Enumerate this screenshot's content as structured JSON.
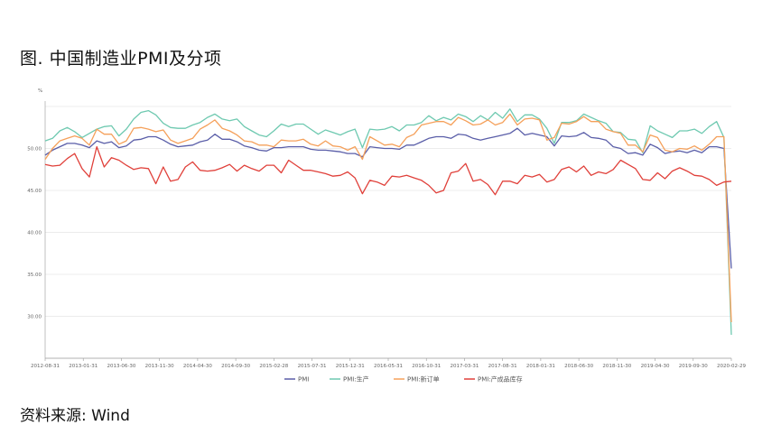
{
  "figure_title": "图. 中国制造业PMI及分项",
  "source": "资料来源: Wind",
  "colors": {
    "PMI": "#5a5ea8",
    "PMI:生产": "#6ec9b0",
    "PMI:新订单": "#f5a05a",
    "PMI:产成品库存": "#e0403a",
    "grid": "#e6e6e6",
    "axis": "#999999"
  },
  "chart_data": {
    "type": "line",
    "ylabel": "%",
    "ylim": [
      25,
      55
    ],
    "yticks": [
      "50.00",
      "45.00",
      "40.00",
      "35.00",
      "30.00"
    ],
    "ytick_values": [
      50,
      45,
      40,
      35,
      30
    ],
    "xtick_labels": [
      "2012-08-31",
      "2013-01-31",
      "2013-06-30",
      "2013-11-30",
      "2014-04-30",
      "2014-09-30",
      "2015-02-28",
      "2015-07-31",
      "2015-12-31",
      "2016-05-31",
      "2016-10-31",
      "2017-03-31",
      "2017-08-31",
      "2018-01-31",
      "2018-06-30",
      "2018-11-30",
      "2019-04-30",
      "2019-09-30",
      "2020-02-29"
    ],
    "legend_position": "bottom",
    "grid": true,
    "series": [
      {
        "name": "PMI",
        "values": [
          49.2,
          49.8,
          50.2,
          50.6,
          50.6,
          50.4,
          50.1,
          50.9,
          50.6,
          50.8,
          50.1,
          50.3,
          51.0,
          51.1,
          51.4,
          51.4,
          51.0,
          50.5,
          50.2,
          50.3,
          50.4,
          50.8,
          51.0,
          51.7,
          51.1,
          51.1,
          50.8,
          50.3,
          50.1,
          49.8,
          49.7,
          50.1,
          50.1,
          50.2,
          50.2,
          50.2,
          49.9,
          49.8,
          49.8,
          49.7,
          49.6,
          49.4,
          49.4,
          49.0,
          50.2,
          50.1,
          50.0,
          50.0,
          49.9,
          50.4,
          50.4,
          50.8,
          51.2,
          51.4,
          51.4,
          51.2,
          51.7,
          51.6,
          51.2,
          51.0,
          51.2,
          51.4,
          51.6,
          51.8,
          52.4,
          51.6,
          51.8,
          51.6,
          51.4,
          50.3,
          51.5,
          51.4,
          51.5,
          51.9,
          51.3,
          51.2,
          51.0,
          50.2,
          50.0,
          49.4,
          49.5,
          49.2,
          50.5,
          50.1,
          49.4,
          49.6,
          49.7,
          49.5,
          49.8,
          49.5,
          50.2,
          50.2,
          50.0,
          35.7
        ]
      },
      {
        "name": "PMI:生产",
        "values": [
          50.9,
          51.2,
          52.1,
          52.5,
          52.0,
          51.3,
          51.8,
          52.3,
          52.6,
          52.7,
          51.5,
          52.3,
          53.5,
          54.3,
          54.5,
          54.0,
          53.0,
          52.5,
          52.4,
          52.4,
          52.8,
          53.1,
          53.7,
          54.1,
          53.5,
          53.3,
          53.5,
          52.6,
          52.1,
          51.6,
          51.4,
          52.1,
          52.9,
          52.6,
          52.9,
          52.9,
          52.3,
          51.7,
          52.2,
          51.9,
          51.6,
          52.0,
          52.3,
          50.1,
          52.3,
          52.2,
          52.3,
          52.6,
          52.1,
          52.8,
          52.8,
          53.1,
          53.9,
          53.3,
          53.7,
          53.4,
          54.1,
          53.8,
          53.2,
          53.9,
          53.4,
          54.3,
          53.6,
          54.7,
          53.2,
          54.0,
          54.0,
          53.5,
          52.4,
          50.6,
          53.1,
          53.1,
          53.3,
          54.1,
          53.7,
          53.3,
          53.0,
          52.0,
          51.9,
          51.1,
          51.0,
          49.5,
          52.7,
          52.1,
          51.7,
          51.3,
          52.1,
          52.1,
          52.3,
          51.8,
          52.6,
          53.2,
          51.3,
          27.8
        ]
      },
      {
        "name": "PMI:新订单",
        "values": [
          48.7,
          50.0,
          50.9,
          51.2,
          51.5,
          51.2,
          50.4,
          52.3,
          51.7,
          51.7,
          50.5,
          50.9,
          52.4,
          52.5,
          52.3,
          52.0,
          52.2,
          51.0,
          50.6,
          50.9,
          51.2,
          52.3,
          52.8,
          53.4,
          52.4,
          52.1,
          51.6,
          50.9,
          50.8,
          50.4,
          50.4,
          50.2,
          51.0,
          50.9,
          50.9,
          51.1,
          50.5,
          50.3,
          50.9,
          50.3,
          50.2,
          49.8,
          50.2,
          48.7,
          51.4,
          50.9,
          50.4,
          50.5,
          50.2,
          51.3,
          51.7,
          52.8,
          53.0,
          53.2,
          53.2,
          52.8,
          53.7,
          53.3,
          52.8,
          52.9,
          53.4,
          52.8,
          53.1,
          54.1,
          52.8,
          53.5,
          53.6,
          53.4,
          51.0,
          51.3,
          53.0,
          52.9,
          53.2,
          53.8,
          53.2,
          53.2,
          52.3,
          52.0,
          51.8,
          50.4,
          50.4,
          49.6,
          51.6,
          51.3,
          49.8,
          49.6,
          50.0,
          49.9,
          50.3,
          49.8,
          50.5,
          51.4,
          51.4,
          29.3
        ]
      },
      {
        "name": "PMI:产成品库存",
        "values": [
          48.1,
          47.9,
          48.0,
          48.8,
          49.4,
          47.6,
          46.6,
          50.2,
          47.8,
          48.9,
          48.6,
          48.0,
          47.5,
          47.7,
          47.6,
          45.8,
          47.8,
          46.1,
          46.3,
          47.8,
          48.4,
          47.4,
          47.3,
          47.4,
          47.7,
          48.1,
          47.3,
          48.0,
          47.6,
          47.3,
          48.0,
          48.0,
          47.1,
          48.6,
          48.0,
          47.4,
          47.4,
          47.2,
          47.0,
          46.7,
          46.8,
          47.2,
          46.5,
          44.6,
          46.2,
          46.0,
          45.6,
          46.7,
          46.6,
          46.8,
          46.5,
          46.2,
          45.6,
          44.7,
          45.0,
          47.1,
          47.3,
          48.2,
          46.1,
          46.3,
          45.7,
          44.5,
          46.1,
          46.1,
          45.8,
          46.8,
          46.6,
          46.9,
          46.0,
          46.3,
          47.5,
          47.8,
          47.2,
          47.9,
          46.8,
          47.2,
          47.0,
          47.5,
          48.6,
          48.1,
          47.6,
          46.3,
          46.2,
          47.1,
          46.4,
          47.3,
          47.7,
          47.3,
          46.8,
          46.7,
          46.3,
          45.6,
          46.0,
          46.1
        ]
      }
    ]
  }
}
